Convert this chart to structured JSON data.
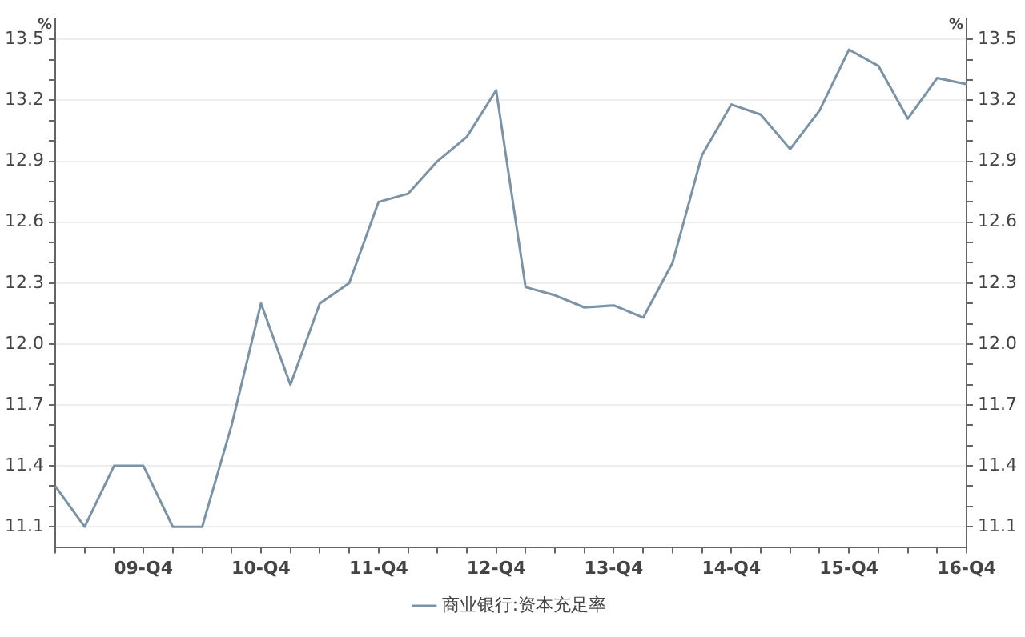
{
  "chart_data": {
    "type": "line",
    "ylabel": "%",
    "y2label": "%",
    "categories": [
      null,
      null,
      null,
      "09-Q4",
      null,
      null,
      null,
      "10-Q4",
      null,
      null,
      null,
      "11-Q4",
      null,
      null,
      null,
      "12-Q4",
      null,
      null,
      null,
      "13-Q4",
      null,
      null,
      null,
      "14-Q4",
      null,
      null,
      null,
      "15-Q4",
      null,
      null,
      null,
      "16-Q4"
    ],
    "series": [
      {
        "name": "商业银行:资本充足率",
        "color": "#7b93a6",
        "values": [
          11.3,
          11.1,
          11.4,
          11.4,
          11.1,
          11.1,
          11.6,
          12.2,
          11.8,
          12.2,
          12.3,
          12.7,
          12.74,
          12.9,
          13.02,
          13.25,
          12.28,
          12.24,
          12.18,
          12.19,
          12.13,
          12.4,
          12.93,
          13.18,
          13.13,
          12.96,
          13.15,
          13.45,
          13.37,
          13.11,
          13.31,
          13.28
        ]
      }
    ],
    "ylim": [
      11.0,
      13.6
    ],
    "yticks": [
      11.1,
      {
        "value": 11.2,
        "label": null
      },
      {
        "value": 11.3,
        "label": null
      },
      11.4,
      {
        "value": 11.5,
        "label": null
      },
      {
        "value": 11.6,
        "label": null
      },
      11.7,
      {
        "value": 11.8,
        "label": null
      },
      {
        "value": 11.9,
        "label": null
      },
      {
        "value": 12,
        "label": "12.0"
      },
      {
        "value": 12.1,
        "label": null
      },
      {
        "value": 12.2,
        "label": null
      },
      12.3,
      {
        "value": 12.4,
        "label": null
      },
      {
        "value": 12.5,
        "label": null
      },
      12.6,
      {
        "value": 12.7,
        "label": null
      },
      {
        "value": 12.8,
        "label": null
      },
      12.9,
      {
        "value": 13,
        "label": null
      },
      {
        "value": 13.1,
        "label": null
      },
      13.2,
      {
        "value": 13.3,
        "label": null
      },
      {
        "value": 13.4,
        "label": null
      },
      13.5
    ],
    "y2lim": [
      11.0,
      13.6
    ],
    "y2ticks": [
      11.1,
      {
        "value": 11.2,
        "label": null
      },
      {
        "value": 11.3,
        "label": null
      },
      11.4,
      {
        "value": 11.5,
        "label": null
      },
      {
        "value": 11.6,
        "label": null
      },
      11.7,
      {
        "value": 11.8,
        "label": null
      },
      {
        "value": 11.9,
        "label": null
      },
      {
        "value": 12,
        "label": "12.0"
      },
      {
        "value": 12.1,
        "label": null
      },
      {
        "value": 12.2,
        "label": null
      },
      12.3,
      {
        "value": 12.4,
        "label": null
      },
      {
        "value": 12.5,
        "label": null
      },
      12.6,
      {
        "value": 12.7,
        "label": null
      },
      {
        "value": 12.8,
        "label": null
      },
      12.9,
      {
        "value": 13,
        "label": null
      },
      {
        "value": 13.1,
        "label": null
      },
      13.2,
      {
        "value": 13.3,
        "label": null
      },
      {
        "value": 13.4,
        "label": null
      },
      13.5
    ],
    "grid": "y",
    "legend": "bottom",
    "marker": "none",
    "line_style": "solid"
  }
}
